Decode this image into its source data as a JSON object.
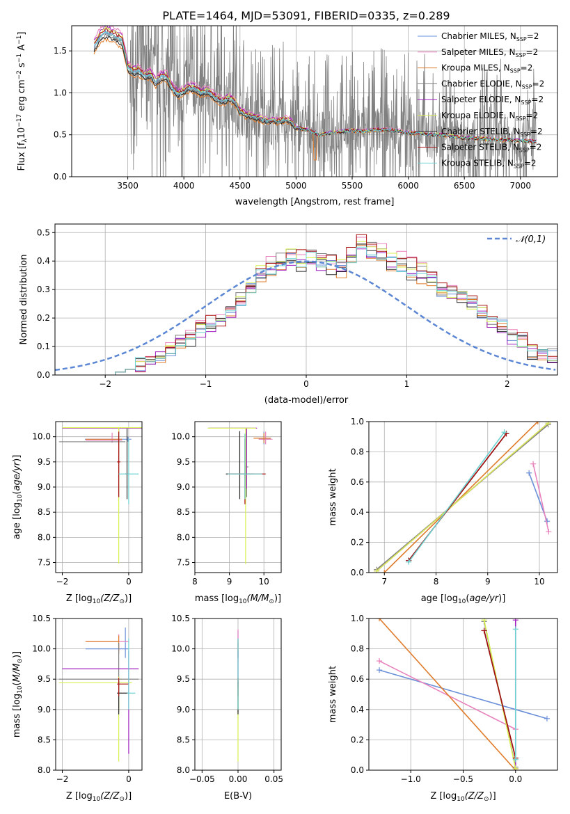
{
  "title": "PLATE=1464, MJD=53091, FIBERID=0335, z=0.289",
  "series_names": [
    "Chabrier MILES, N_SSP=2",
    "Salpeter MILES, N_SSP=2",
    "Kroupa MILES, N_SSP=2",
    "Chabrier ELODIE, N_SSP=2",
    "Salpeter ELODIE, N_SSP=2",
    "Kroupa ELODIE, N_SSP=2",
    "Chabrier STELIB, N_SSP=2",
    "Salpeter STELIB, N_SSP=2",
    "Kroupa STELIB, N_SSP=2"
  ],
  "colors": {
    "series": [
      "#6a8fd8",
      "#e882bd",
      "#e07b2a",
      "#7e7e7e",
      "#a020c0",
      "#d8f050",
      "#2a2a2a",
      "#a81010",
      "#6cd2d2"
    ],
    "data_spectrum": "#808080",
    "normal_curve": "#5b86d4",
    "grid": "#b0b0b0"
  },
  "chart_data": [
    {
      "id": "spectrum",
      "type": "line",
      "xlabel": "wavelength [Angstrom, rest frame]",
      "ylabel_main": "Flux [f",
      "ylabel_sub": "λ",
      "ylabel_mid": "10",
      "ylabel_sup": "−17",
      "ylabel_end": " erg cm",
      "ylabel_sup2": "−2",
      "ylabel_end2": " s",
      "ylabel_sup3": "−1",
      "ylabel_end3": " A",
      "ylabel_sup4": "−1",
      "ylabel_close": "]",
      "xlim": [
        3000,
        7330
      ],
      "ylim": [
        0,
        1.8
      ],
      "xticks": [
        3500,
        4000,
        4500,
        5000,
        5500,
        6000,
        6500,
        7000
      ],
      "yticks": [
        0.0,
        0.5,
        1.0,
        1.5
      ],
      "model_continuum": {
        "x": [
          3200,
          3250,
          3300,
          3350,
          3400,
          3450,
          3500,
          3550,
          3600,
          3650,
          3700,
          3750,
          3800,
          3850,
          3900,
          3950,
          4000,
          4050,
          4100,
          4150,
          4200,
          4250,
          4300,
          4350,
          4400,
          4450,
          4500,
          4550,
          4600,
          4650,
          4700,
          4750,
          4800,
          4850,
          4900,
          4950,
          5000,
          5100,
          5200,
          5300,
          5400,
          5500,
          5600,
          5700,
          5800,
          5900,
          6000,
          6100,
          6200,
          6300,
          6400,
          6500,
          6600,
          6700,
          6800,
          6900,
          7000,
          7100
        ],
        "y": [
          1.55,
          1.66,
          1.72,
          1.7,
          1.66,
          1.62,
          1.3,
          1.25,
          1.26,
          1.2,
          1.22,
          1.12,
          1.2,
          1.18,
          1.05,
          0.98,
          1.02,
          1.06,
          1.05,
          1.0,
          1.02,
          0.98,
          0.92,
          0.9,
          0.93,
          0.9,
          0.78,
          0.74,
          0.72,
          0.7,
          0.68,
          0.66,
          0.67,
          0.66,
          0.68,
          0.66,
          0.58,
          0.56,
          0.5,
          0.52,
          0.54,
          0.55,
          0.54,
          0.56,
          0.56,
          0.55,
          0.52,
          0.52,
          0.5,
          0.5,
          0.48,
          0.46,
          0.46,
          0.45,
          0.44,
          0.44,
          0.43,
          0.42
        ]
      },
      "data_range": [
        3200,
        7140
      ]
    },
    {
      "id": "residuals",
      "type": "histogram",
      "xlabel": "(data-model)/error",
      "ylabel": "Normed distribution",
      "legend": "𝒩(0,1)",
      "xlim": [
        -2.5,
        2.5
      ],
      "ylim": [
        0,
        0.53
      ],
      "xticks": [
        -2,
        -1,
        0,
        1,
        2
      ],
      "yticks": [
        0.0,
        0.1,
        0.2,
        0.3,
        0.4,
        0.5
      ],
      "bin_width": 0.1,
      "bin_start": -2.5,
      "base_values": [
        0,
        0,
        0,
        0,
        0,
        0,
        0.01,
        0.02,
        0.04,
        0.05,
        0.06,
        0.09,
        0.11,
        0.13,
        0.16,
        0.18,
        0.19,
        0.23,
        0.26,
        0.31,
        0.36,
        0.38,
        0.39,
        0.41,
        0.4,
        0.42,
        0.4,
        0.39,
        0.38,
        0.41,
        0.46,
        0.43,
        0.42,
        0.4,
        0.39,
        0.37,
        0.36,
        0.33,
        0.3,
        0.29,
        0.27,
        0.25,
        0.22,
        0.19,
        0.17,
        0.13,
        0.12,
        0.08,
        0.07,
        0.07,
        0.06,
        0.05,
        0.05,
        0.05,
        0.04,
        0.04,
        0.03,
        0.02,
        0.04,
        0.05,
        0.04,
        0.04,
        0.03,
        0.04,
        0.05,
        0.04,
        0.05,
        0.05,
        0.05,
        0.05
      ]
    },
    {
      "id": "age-Z",
      "type": "errorbar",
      "xlabel": "Z [log",
      "xlabel_sub": "10",
      "xlabel_rest": "(Z/Z",
      "xlabel_sun": "⊙",
      "xlabel_close": ")]",
      "ylabel": "age  [log10(age/yr)]",
      "xlim": [
        -2.2,
        0.4
      ],
      "ylim": [
        7.3,
        10.3
      ],
      "xticks": [
        -2,
        0
      ],
      "yticks": [
        7.5,
        8.0,
        8.5,
        9.0,
        9.5,
        10.0
      ],
      "points": [
        {
          "series": 0,
          "x": -0.02,
          "y": 9.95,
          "xerr": [
            1.3,
            0.1
          ],
          "yerr": [
            0.05,
            0.05
          ]
        },
        {
          "series": 1,
          "x": -0.5,
          "y": 9.93,
          "xerr": [
            0.8,
            0.3
          ],
          "yerr": [
            0.05,
            0.15
          ]
        },
        {
          "series": 2,
          "x": -0.3,
          "y": 9.95,
          "xerr": [
            1.0,
            0.1
          ],
          "yerr": [
            0.28,
            0.15
          ]
        },
        {
          "series": 3,
          "x": -0.3,
          "y": 9.9,
          "xerr": [
            1.8,
            0.2
          ],
          "yerr": [
            1.1,
            0.2
          ]
        },
        {
          "series": 4,
          "x": -0.3,
          "y": 10.17,
          "xerr": [
            1.7,
            0.7
          ],
          "yerr": [
            0.9,
            0.0
          ]
        },
        {
          "series": 5,
          "x": -0.3,
          "y": 10.18,
          "xerr": [
            1.7,
            0.7
          ],
          "yerr": [
            2.7,
            0.0
          ]
        },
        {
          "series": 6,
          "x": -0.05,
          "y": 9.26,
          "xerr": [
            0.05,
            0.05
          ],
          "yerr": [
            0.5,
            0.9
          ]
        },
        {
          "series": 7,
          "x": -0.3,
          "y": 9.5,
          "xerr": [
            0.05,
            0.05
          ],
          "yerr": [
            0.7,
            0.6
          ]
        },
        {
          "series": 8,
          "x": 0.0,
          "y": 9.26,
          "xerr": [
            0.3,
            0.3
          ],
          "yerr": [
            0.6,
            0.7
          ]
        }
      ]
    },
    {
      "id": "age-mass",
      "type": "errorbar",
      "xlabel": "mass [log",
      "xlabel_sub": "10",
      "xlabel_rest": "(M/M",
      "xlabel_sun": "⊙",
      "xlabel_close": ")]",
      "xlim": [
        8.0,
        10.5
      ],
      "ylim": [
        7.3,
        10.3
      ],
      "xticks": [
        8,
        9,
        10
      ],
      "yticks": [
        7.5,
        8.0,
        8.5,
        9.0,
        9.5,
        10.0
      ],
      "points": [
        {
          "series": 0,
          "x": 10.0,
          "y": 9.95,
          "xerr": [
            0.15,
            0.2
          ],
          "yerr": [
            0.1,
            0.15
          ]
        },
        {
          "series": 1,
          "x": 10.05,
          "y": 9.95,
          "xerr": [
            0.2,
            0.2
          ],
          "yerr": [
            0.1,
            0.15
          ]
        },
        {
          "series": 2,
          "x": 10.0,
          "y": 9.97,
          "xerr": [
            0.3,
            0.2
          ],
          "yerr": [
            0.1,
            0.1
          ]
        },
        {
          "series": 3,
          "x": 9.5,
          "y": 9.4,
          "xerr": [
            0.05,
            0.05
          ],
          "yerr": [
            0.6,
            0.7
          ]
        },
        {
          "series": 4,
          "x": 9.5,
          "y": 10.17,
          "xerr": [
            1.1,
            0.3
          ],
          "yerr": [
            1.2,
            0.0
          ]
        },
        {
          "series": 5,
          "x": 9.47,
          "y": 10.17,
          "xerr": [
            1.1,
            0.3
          ],
          "yerr": [
            2.7,
            0.0
          ]
        },
        {
          "series": 6,
          "x": 9.3,
          "y": 9.26,
          "xerr": [
            0.4,
            0.4
          ],
          "yerr": [
            0.5,
            0.85
          ]
        },
        {
          "series": 7,
          "x": 9.45,
          "y": 9.26,
          "xerr": [
            0.5,
            0.6
          ],
          "yerr": [
            0.6,
            0.7
          ]
        },
        {
          "series": 8,
          "x": 9.45,
          "y": 9.26,
          "xerr": [
            0.5,
            0.5
          ],
          "yerr": [
            0.5,
            0.8
          ]
        }
      ]
    },
    {
      "id": "weight-age",
      "type": "line",
      "xlabel": "age  [log10(age/yr)]",
      "ylabel": "mass weight",
      "xlim": [
        6.7,
        10.35
      ],
      "ylim": [
        0,
        1.0
      ],
      "xticks": [
        7,
        8,
        9,
        10
      ],
      "yticks": [
        0.0,
        0.2,
        0.4,
        0.6,
        0.8,
        1.0
      ],
      "lines": [
        {
          "series": 0,
          "x": [
            9.8,
            10.15
          ],
          "y": [
            0.66,
            0.34
          ]
        },
        {
          "series": 1,
          "x": [
            9.88,
            10.18
          ],
          "y": [
            0.72,
            0.27
          ]
        },
        {
          "series": 2,
          "x": [
            7.0,
            9.97
          ],
          "y": [
            0.0,
            1.0
          ]
        },
        {
          "series": 3,
          "x": [
            6.85,
            10.17
          ],
          "y": [
            0.02,
            0.98
          ]
        },
        {
          "series": 4,
          "x": [
            6.85,
            10.17
          ],
          "y": [
            0.01,
            0.99
          ]
        },
        {
          "series": 5,
          "x": [
            6.85,
            10.17
          ],
          "y": [
            0.01,
            0.99
          ]
        },
        {
          "series": 6,
          "x": [
            7.47,
            9.36
          ],
          "y": [
            0.08,
            0.92
          ]
        },
        {
          "series": 7,
          "x": [
            7.47,
            9.36
          ],
          "y": [
            0.08,
            0.92
          ]
        },
        {
          "series": 8,
          "x": [
            7.47,
            9.32
          ],
          "y": [
            0.07,
            0.93
          ]
        }
      ]
    },
    {
      "id": "mass-Z",
      "type": "errorbar",
      "ylabel": "mass [log10(M/M⊙)]",
      "xlim": [
        -2.2,
        0.4
      ],
      "ylim": [
        8.0,
        10.5
      ],
      "xticks": [
        -2,
        0
      ],
      "yticks": [
        8.0,
        8.5,
        9.0,
        9.5,
        10.0,
        10.5
      ],
      "points": [
        {
          "series": 0,
          "x": -0.1,
          "y": 10.0,
          "xerr": [
            1.2,
            0.1
          ],
          "yerr": [
            0.15,
            0.35
          ]
        },
        {
          "series": 1,
          "x": -0.3,
          "y": 10.12,
          "xerr": [
            1.0,
            0.3
          ],
          "yerr": [
            0.15,
            0.12
          ]
        },
        {
          "series": 2,
          "x": -0.3,
          "y": 10.12,
          "xerr": [
            1.0,
            0.0
          ],
          "yerr": [
            0.2,
            0.1
          ]
        },
        {
          "series": 3,
          "x": -0.3,
          "y": 9.5,
          "xerr": [
            1.8,
            0.6
          ],
          "yerr": [
            0.55,
            0.6
          ]
        },
        {
          "series": 4,
          "x": 0.0,
          "y": 9.67,
          "xerr": [
            2.0,
            0.3
          ],
          "yerr": [
            1.4,
            0.3
          ]
        },
        {
          "series": 5,
          "x": -0.3,
          "y": 9.44,
          "xerr": [
            1.8,
            0.4
          ],
          "yerr": [
            1.3,
            0.1
          ]
        },
        {
          "series": 6,
          "x": -0.3,
          "y": 9.27,
          "xerr": [
            0.05,
            0.3
          ],
          "yerr": [
            0.35,
            0.2
          ]
        },
        {
          "series": 7,
          "x": -0.3,
          "y": 9.42,
          "xerr": [
            0.05,
            0.3
          ],
          "yerr": [
            0.2,
            0.1
          ]
        },
        {
          "series": 8,
          "x": 0.0,
          "y": 9.27,
          "xerr": [
            0.05,
            0.2
          ],
          "yerr": [
            0.27,
            0.9
          ]
        }
      ]
    },
    {
      "id": "mass-ebv",
      "type": "errorbar",
      "xlabel": "E(B-V)",
      "xlim": [
        -0.06,
        0.06
      ],
      "ylim": [
        8.0,
        10.5
      ],
      "xticks": [
        -0.05,
        0.0,
        0.05
      ],
      "xtick_labels": [
        "−0.05",
        "0.00",
        "0.05"
      ],
      "yticks": [
        8.0,
        8.5,
        9.0,
        9.5,
        10.0,
        10.5
      ],
      "points": [
        {
          "series": 0,
          "x": 0.0,
          "y": 10.0,
          "xerr": [
            0,
            0
          ],
          "yerr": [
            0.15,
            0.3
          ]
        },
        {
          "series": 1,
          "x": 0.0,
          "y": 10.12,
          "xerr": [
            0,
            0
          ],
          "yerr": [
            0.15,
            0.2
          ]
        },
        {
          "series": 2,
          "x": 0.0,
          "y": 10.05,
          "xerr": [
            0,
            0
          ],
          "yerr": [
            0.2,
            0.1
          ]
        },
        {
          "series": 3,
          "x": 0.0,
          "y": 9.5,
          "xerr": [
            0,
            0
          ],
          "yerr": [
            0.55,
            0.6
          ]
        },
        {
          "series": 4,
          "x": 0.0,
          "y": 9.67,
          "xerr": [
            0,
            0
          ],
          "yerr": [
            0.3,
            0.3
          ]
        },
        {
          "series": 5,
          "x": 0.0,
          "y": 9.44,
          "xerr": [
            0,
            0
          ],
          "yerr": [
            1.3,
            0.1
          ]
        },
        {
          "series": 6,
          "x": 0.0,
          "y": 9.27,
          "xerr": [
            0,
            0
          ],
          "yerr": [
            0.35,
            0.2
          ]
        },
        {
          "series": 7,
          "x": 0.0,
          "y": 9.42,
          "xerr": [
            0,
            0
          ],
          "yerr": [
            0.2,
            0.1
          ]
        },
        {
          "series": 8,
          "x": 0.0,
          "y": 9.27,
          "xerr": [
            0,
            0
          ],
          "yerr": [
            0.27,
            0.9
          ]
        }
      ]
    },
    {
      "id": "weight-Z",
      "type": "line",
      "ylabel": "mass weight",
      "xlim": [
        -1.4,
        0.4
      ],
      "ylim": [
        0,
        1.0
      ],
      "xticks": [
        -1.0,
        -0.5,
        0.0
      ],
      "xtick_labels": [
        "−1.0",
        "−0.5",
        "0.0"
      ],
      "yticks": [
        0.0,
        0.2,
        0.4,
        0.6,
        0.8,
        1.0
      ],
      "lines": [
        {
          "series": 0,
          "x": [
            -1.3,
            0.3
          ],
          "y": [
            0.66,
            0.34
          ]
        },
        {
          "series": 1,
          "x": [
            -1.3,
            0.0
          ],
          "y": [
            0.72,
            0.27
          ]
        },
        {
          "series": 2,
          "x": [
            -1.3,
            0.0
          ],
          "y": [
            1.0,
            0.0
          ]
        },
        {
          "series": 3,
          "x": [
            -0.3,
            0.0
          ],
          "y": [
            0.98,
            0.02
          ]
        },
        {
          "series": 4,
          "x": [
            0.0,
            0.0
          ],
          "y": [
            0.99,
            0.01
          ]
        },
        {
          "series": 5,
          "x": [
            -0.3,
            0.0
          ],
          "y": [
            0.99,
            0.01
          ]
        },
        {
          "series": 6,
          "x": [
            -0.3,
            0.0
          ],
          "y": [
            0.92,
            0.08
          ]
        },
        {
          "series": 7,
          "x": [
            -0.3,
            0.0
          ],
          "y": [
            0.92,
            0.08
          ]
        },
        {
          "series": 8,
          "x": [
            0.0,
            0.0
          ],
          "y": [
            0.93,
            0.07
          ]
        }
      ]
    }
  ]
}
